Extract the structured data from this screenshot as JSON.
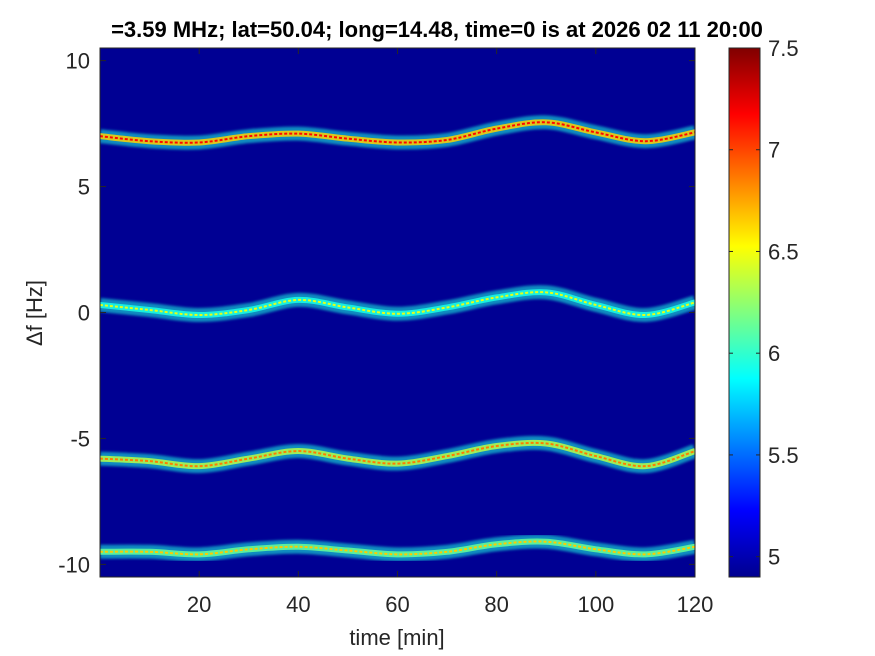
{
  "chart_data": {
    "type": "heatmap",
    "title": "=3.59 MHz;  lat=50.04; long=14.48, time=0 is at 2026 02 11 20:00",
    "xlabel": "time [min]",
    "ylabel": "Δf [Hz]",
    "xlim": [
      0,
      120
    ],
    "ylim": [
      -10.5,
      10.5
    ],
    "x_ticks": [
      20,
      40,
      60,
      80,
      100,
      120
    ],
    "y_ticks": [
      10,
      5,
      0,
      -5,
      -10
    ],
    "colorbar": {
      "colormap": "jet",
      "range": [
        4.9,
        7.5
      ],
      "ticks": [
        5,
        5.5,
        6,
        6.5,
        7,
        7.5
      ]
    },
    "background_value": 4.95,
    "traces": [
      {
        "label": "trace near +7 Hz",
        "time": [
          0,
          10,
          20,
          30,
          40,
          50,
          60,
          70,
          80,
          90,
          100,
          110,
          120
        ],
        "df": [
          7.0,
          6.8,
          6.75,
          7.0,
          7.1,
          6.9,
          6.75,
          6.85,
          7.3,
          7.55,
          7.15,
          6.8,
          7.15
        ],
        "intensity": 6.9
      },
      {
        "label": "trace near 0 Hz",
        "time": [
          0,
          10,
          20,
          30,
          40,
          50,
          60,
          70,
          80,
          90,
          100,
          110,
          120
        ],
        "df": [
          0.3,
          0.1,
          -0.1,
          0.1,
          0.5,
          0.2,
          -0.05,
          0.2,
          0.6,
          0.8,
          0.3,
          -0.1,
          0.4
        ],
        "intensity": 6.2
      },
      {
        "label": "trace near -5.8 Hz",
        "time": [
          0,
          10,
          20,
          30,
          40,
          50,
          60,
          70,
          80,
          90,
          100,
          110,
          120
        ],
        "df": [
          -5.8,
          -5.9,
          -6.1,
          -5.8,
          -5.5,
          -5.8,
          -6.0,
          -5.7,
          -5.3,
          -5.2,
          -5.7,
          -6.1,
          -5.5
        ],
        "intensity": 6.6
      },
      {
        "label": "trace near -9.5 Hz",
        "time": [
          0,
          10,
          20,
          30,
          40,
          50,
          60,
          70,
          80,
          90,
          100,
          110,
          120
        ],
        "df": [
          -9.5,
          -9.5,
          -9.6,
          -9.4,
          -9.3,
          -9.45,
          -9.6,
          -9.5,
          -9.2,
          -9.1,
          -9.4,
          -9.6,
          -9.3
        ],
        "intensity": 6.4
      }
    ]
  }
}
